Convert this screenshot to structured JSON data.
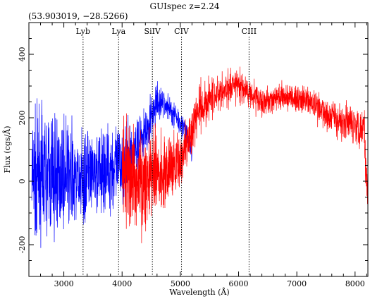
{
  "title": "GUIspec z=2.24",
  "coords": "(53.903019, −28.5266)",
  "chart_data": {
    "type": "line",
    "title": "GUIspec z=2.24",
    "xlabel": "Wavelength (Å)",
    "ylabel": "Flux (cgs/Å)",
    "xlim": [
      2400,
      8220
    ],
    "ylim": [
      -300,
      500
    ],
    "x_ticks": [
      3000,
      4000,
      5000,
      6000,
      7000,
      8000
    ],
    "y_ticks": [
      -200,
      0,
      200,
      400
    ],
    "grid": false,
    "lines": [
      {
        "label": "Lyb",
        "x": 3330
      },
      {
        "label": "Lya",
        "x": 3940
      },
      {
        "label": "SiIV",
        "x": 4520
      },
      {
        "label": "CIV",
        "x": 5020
      },
      {
        "label": "CIII",
        "x": 6180
      }
    ],
    "series": [
      {
        "color": "#0000ff",
        "x": [
          2450,
          2600,
          2800,
          3000,
          3200,
          3400,
          3600,
          3800,
          4000,
          4200,
          4400,
          4500,
          4600,
          4700,
          4800,
          4900,
          5000,
          5100,
          5200
        ],
        "y": [
          0,
          20,
          10,
          20,
          0,
          10,
          20,
          40,
          50,
          90,
          160,
          200,
          240,
          250,
          230,
          210,
          190,
          150,
          100
        ],
        "noise": [
          150,
          140,
          130,
          120,
          110,
          100,
          95,
          90,
          85,
          60,
          50,
          45,
          40,
          35,
          30,
          30,
          30,
          30,
          30
        ]
      },
      {
        "color": "#ff0000",
        "x": [
          4000,
          4200,
          4400,
          4600,
          4800,
          5000,
          5100,
          5300,
          5500,
          5800,
          6000,
          6200,
          6400,
          6600,
          6800,
          7000,
          7200,
          7400,
          7600,
          7800,
          8000,
          8150,
          8220
        ],
        "y": [
          20,
          10,
          0,
          30,
          40,
          60,
          120,
          220,
          260,
          290,
          300,
          280,
          250,
          260,
          265,
          260,
          250,
          230,
          200,
          190,
          180,
          170,
          -50
        ],
        "noise": [
          110,
          110,
          100,
          90,
          80,
          70,
          60,
          55,
          45,
          40,
          35,
          35,
          30,
          30,
          30,
          30,
          35,
          35,
          40,
          40,
          40,
          50,
          50
        ]
      }
    ]
  }
}
